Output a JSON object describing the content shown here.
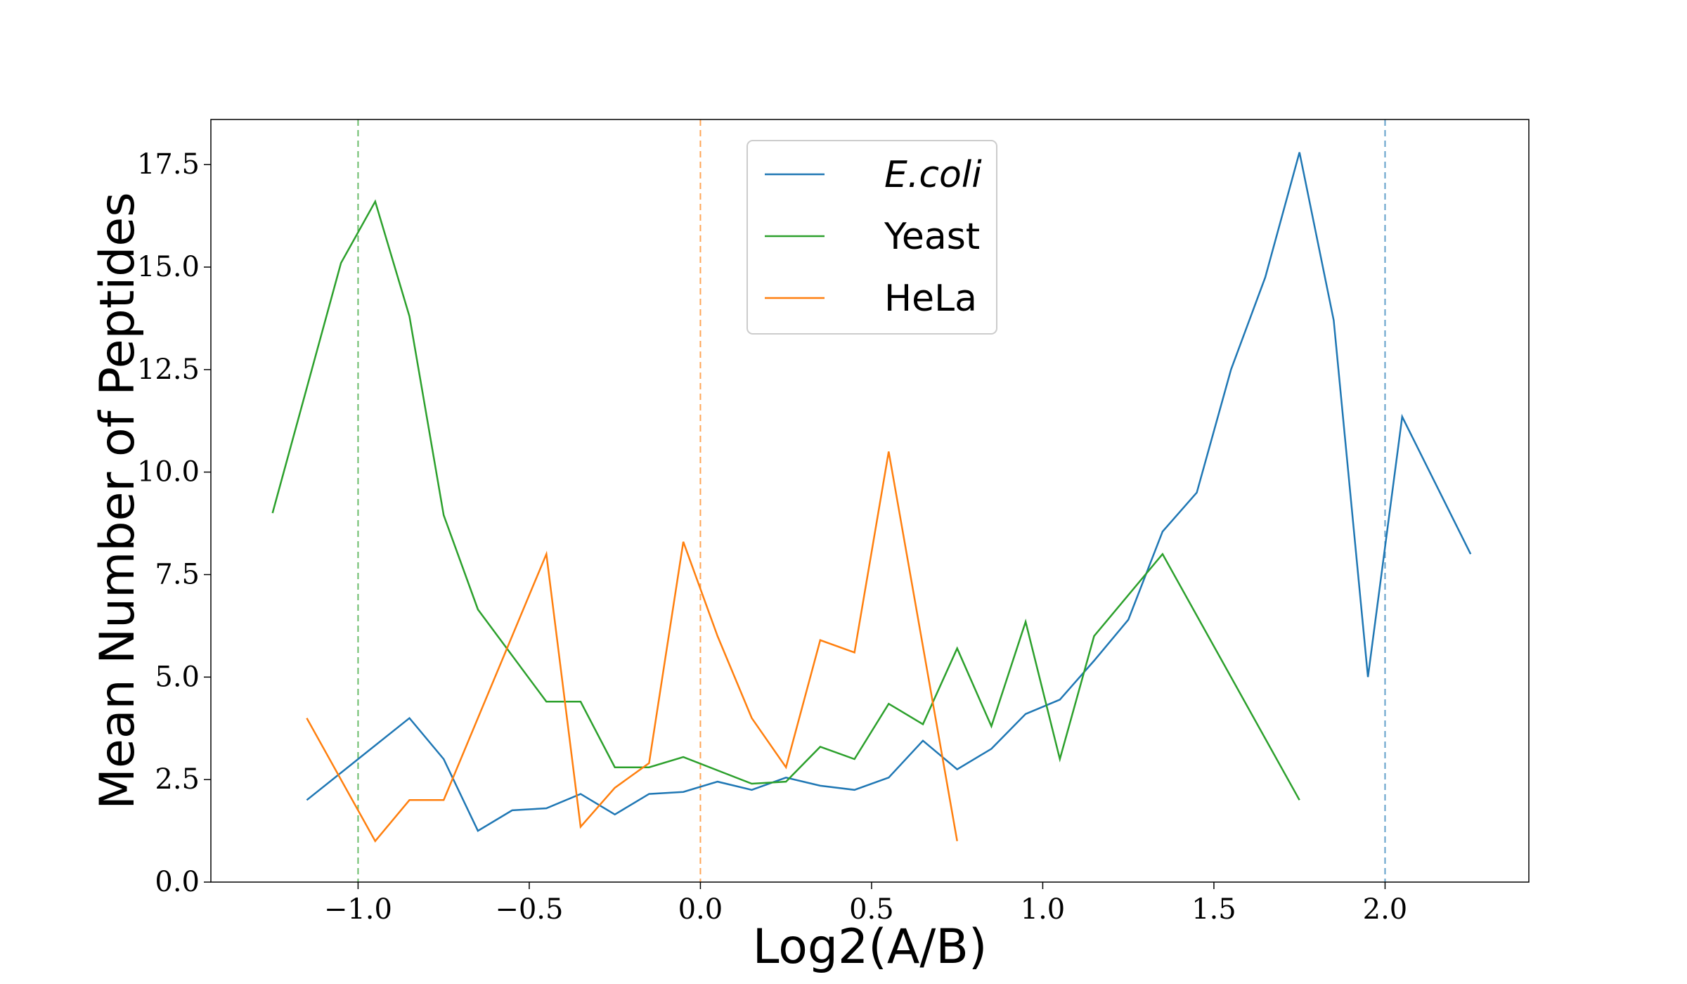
{
  "chart_data": {
    "type": "line",
    "title": "",
    "xlabel": "Log2(A/B)",
    "ylabel": "Mean Number of Peptides",
    "xlim": [
      -1.43,
      2.42
    ],
    "ylim": [
      0,
      18.6
    ],
    "xticks": [
      -1.0,
      -0.5,
      0.0,
      0.5,
      1.0,
      1.5,
      2.0
    ],
    "xtick_labels": [
      "−1.0",
      "−0.5",
      "0.0",
      "0.5",
      "1.0",
      "1.5",
      "2.0"
    ],
    "yticks": [
      0,
      2.5,
      5,
      7.5,
      10,
      12.5,
      15,
      17.5
    ],
    "ytick_labels": [
      "0.0",
      "2.5",
      "5.0",
      "7.5",
      "10.0",
      "12.5",
      "15.0",
      "17.5"
    ],
    "grid": false,
    "legend_position": "top-center",
    "series": [
      {
        "name": "E.coli",
        "italic": true,
        "color": "#1f77b4",
        "x": [
          -1.15,
          -0.85,
          -0.75,
          -0.65,
          -0.55,
          -0.45,
          -0.35,
          -0.25,
          -0.15,
          -0.05,
          0.05,
          0.15,
          0.25,
          0.35,
          0.45,
          0.55,
          0.65,
          0.75,
          0.85,
          0.95,
          1.05,
          1.15,
          1.25,
          1.35,
          1.45,
          1.55,
          1.65,
          1.75,
          1.85,
          1.95,
          2.05,
          2.25
        ],
        "y": [
          2.0,
          4.0,
          3.0,
          1.25,
          1.75,
          1.8,
          2.15,
          1.65,
          2.15,
          2.2,
          2.45,
          2.25,
          2.55,
          2.35,
          2.25,
          2.55,
          3.45,
          2.75,
          3.25,
          4.1,
          4.45,
          5.4,
          6.4,
          8.55,
          9.5,
          12.5,
          14.75,
          17.8,
          13.7,
          5.0,
          11.35,
          8.0
        ]
      },
      {
        "name": "Yeast",
        "italic": false,
        "color": "#2ca02c",
        "x": [
          -1.25,
          -1.05,
          -0.95,
          -0.85,
          -0.75,
          -0.65,
          -0.45,
          -0.35,
          -0.25,
          -0.15,
          -0.05,
          0.15,
          0.25,
          0.35,
          0.45,
          0.55,
          0.65,
          0.75,
          0.85,
          0.95,
          1.05,
          1.15,
          1.35,
          1.75
        ],
        "y": [
          9.0,
          15.1,
          16.6,
          13.8,
          8.95,
          6.65,
          4.4,
          4.4,
          2.8,
          2.8,
          3.05,
          2.4,
          2.45,
          3.3,
          3.0,
          4.35,
          3.85,
          5.7,
          3.8,
          6.35,
          3.0,
          6.0,
          8.0,
          2.0
        ]
      },
      {
        "name": "HeLa",
        "italic": false,
        "color": "#ff7f0e",
        "x": [
          -1.15,
          -0.95,
          -0.85,
          -0.75,
          -0.45,
          -0.35,
          -0.25,
          -0.15,
          -0.05,
          0.05,
          0.15,
          0.25,
          0.35,
          0.45,
          0.55,
          0.75
        ],
        "y": [
          4.0,
          1.0,
          2.0,
          2.0,
          8.0,
          1.35,
          2.3,
          2.9,
          8.3,
          6.0,
          4.0,
          2.8,
          5.9,
          5.6,
          10.5,
          1.0
        ]
      }
    ],
    "reference_lines": [
      {
        "x": -1.0,
        "color": "#2ca02c",
        "style": "dashed"
      },
      {
        "x": 0.0,
        "color": "#ff7f0e",
        "style": "dashed"
      },
      {
        "x": 2.0,
        "color": "#1f77b4",
        "style": "dashed"
      }
    ]
  }
}
